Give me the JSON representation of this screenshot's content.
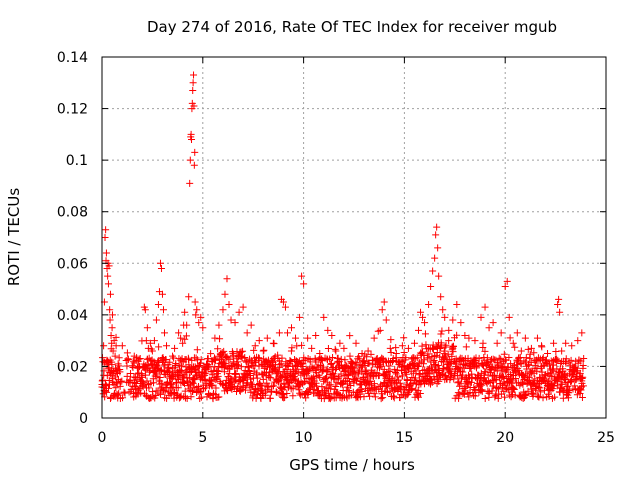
{
  "chart_data": {
    "type": "scatter",
    "title": "Day 274 of 2016, Rate Of TEC Index for receiver mgub",
    "xlabel": "GPS time / hours",
    "ylabel": "ROTI / TECUs",
    "xlim": [
      0,
      25
    ],
    "ylim": [
      0,
      0.14
    ],
    "x_ticks": [
      0,
      5,
      10,
      15,
      20,
      25
    ],
    "x_tick_labels": [
      "0",
      "5",
      "10",
      "15",
      "20",
      "25"
    ],
    "y_ticks": [
      0,
      0.02,
      0.04,
      0.06,
      0.08,
      0.1,
      0.12,
      0.14
    ],
    "y_tick_labels": [
      "0",
      "0.02",
      "0.04",
      "0.06",
      "0.08",
      "0.1",
      "0.12",
      "0.14"
    ],
    "grid": true,
    "marker": "+",
    "series": [
      {
        "name": "ROTI",
        "color": "#ff0000",
        "points": [
          [
            0.0,
            0.012
          ],
          [
            0.08,
            0.028
          ],
          [
            0.12,
            0.045
          ],
          [
            0.15,
            0.07
          ],
          [
            0.18,
            0.073
          ],
          [
            0.2,
            0.061
          ],
          [
            0.22,
            0.064
          ],
          [
            0.25,
            0.058
          ],
          [
            0.28,
            0.055
          ],
          [
            0.3,
            0.06
          ],
          [
            0.32,
            0.052
          ],
          [
            0.35,
            0.059
          ],
          [
            0.38,
            0.042
          ],
          [
            0.4,
            0.038
          ],
          [
            0.42,
            0.048
          ],
          [
            0.45,
            0.032
          ],
          [
            0.48,
            0.029
          ],
          [
            0.5,
            0.035
          ],
          [
            0.52,
            0.04
          ],
          [
            0.55,
            0.026
          ],
          [
            0.6,
            0.03
          ],
          [
            0.65,
            0.024
          ],
          [
            0.7,
            0.028
          ],
          [
            0.8,
            0.021
          ],
          [
            1.6,
            0.024
          ],
          [
            1.8,
            0.022
          ],
          [
            2.1,
            0.043
          ],
          [
            2.15,
            0.042
          ],
          [
            2.2,
            0.03
          ],
          [
            2.25,
            0.035
          ],
          [
            2.3,
            0.027
          ],
          [
            2.4,
            0.029
          ],
          [
            2.5,
            0.026
          ],
          [
            2.6,
            0.03
          ],
          [
            2.7,
            0.038
          ],
          [
            2.8,
            0.044
          ],
          [
            2.85,
            0.049
          ],
          [
            2.9,
            0.06
          ],
          [
            2.95,
            0.058
          ],
          [
            3.0,
            0.048
          ],
          [
            3.05,
            0.042
          ],
          [
            3.1,
            0.033
          ],
          [
            3.2,
            0.028
          ],
          [
            3.5,
            0.024
          ],
          [
            3.6,
            0.027
          ],
          [
            3.8,
            0.033
          ],
          [
            3.9,
            0.031
          ],
          [
            4.0,
            0.029
          ],
          [
            4.05,
            0.036
          ],
          [
            4.1,
            0.041
          ],
          [
            4.2,
            0.036
          ],
          [
            4.3,
            0.047
          ],
          [
            4.35,
            0.091
          ],
          [
            4.38,
            0.1
          ],
          [
            4.4,
            0.109
          ],
          [
            4.42,
            0.11
          ],
          [
            4.44,
            0.108
          ],
          [
            4.46,
            0.12
          ],
          [
            4.48,
            0.122
          ],
          [
            4.5,
            0.127
          ],
          [
            4.52,
            0.13
          ],
          [
            4.54,
            0.133
          ],
          [
            4.56,
            0.121
          ],
          [
            4.58,
            0.098
          ],
          [
            4.6,
            0.103
          ],
          [
            4.62,
            0.045
          ],
          [
            4.65,
            0.04
          ],
          [
            4.7,
            0.042
          ],
          [
            4.8,
            0.037
          ],
          [
            4.9,
            0.039
          ],
          [
            5.0,
            0.035
          ],
          [
            5.6,
            0.031
          ],
          [
            5.8,
            0.036
          ],
          [
            6.0,
            0.042
          ],
          [
            6.1,
            0.048
          ],
          [
            6.2,
            0.054
          ],
          [
            6.3,
            0.044
          ],
          [
            6.4,
            0.038
          ],
          [
            6.6,
            0.037
          ],
          [
            6.8,
            0.041
          ],
          [
            7.0,
            0.043
          ],
          [
            7.2,
            0.033
          ],
          [
            7.4,
            0.036
          ],
          [
            7.6,
            0.028
          ],
          [
            7.8,
            0.03
          ],
          [
            8.0,
            0.026
          ],
          [
            8.2,
            0.031
          ],
          [
            8.5,
            0.029
          ],
          [
            8.8,
            0.033
          ],
          [
            8.9,
            0.046
          ],
          [
            9.0,
            0.045
          ],
          [
            9.1,
            0.043
          ],
          [
            9.2,
            0.033
          ],
          [
            9.4,
            0.035
          ],
          [
            9.6,
            0.031
          ],
          [
            9.8,
            0.039
          ],
          [
            9.9,
            0.055
          ],
          [
            10.0,
            0.052
          ],
          [
            10.2,
            0.031
          ],
          [
            10.4,
            0.027
          ],
          [
            10.6,
            0.032
          ],
          [
            10.8,
            0.025
          ],
          [
            11.0,
            0.039
          ],
          [
            11.2,
            0.034
          ],
          [
            11.4,
            0.032
          ],
          [
            11.6,
            0.026
          ],
          [
            11.8,
            0.029
          ],
          [
            12.0,
            0.027
          ],
          [
            12.3,
            0.024
          ],
          [
            12.6,
            0.029
          ],
          [
            12.9,
            0.025
          ],
          [
            13.2,
            0.026
          ],
          [
            13.5,
            0.031
          ],
          [
            13.8,
            0.034
          ],
          [
            13.9,
            0.042
          ],
          [
            14.0,
            0.045
          ],
          [
            14.1,
            0.038
          ],
          [
            14.3,
            0.027
          ],
          [
            14.6,
            0.025
          ],
          [
            14.9,
            0.028
          ],
          [
            15.2,
            0.027
          ],
          [
            15.5,
            0.029
          ],
          [
            15.7,
            0.034
          ],
          [
            15.8,
            0.041
          ],
          [
            15.9,
            0.039
          ],
          [
            16.0,
            0.037
          ],
          [
            16.2,
            0.044
          ],
          [
            16.3,
            0.051
          ],
          [
            16.4,
            0.057
          ],
          [
            16.5,
            0.062
          ],
          [
            16.55,
            0.071
          ],
          [
            16.6,
            0.074
          ],
          [
            16.65,
            0.066
          ],
          [
            16.7,
            0.055
          ],
          [
            16.8,
            0.047
          ],
          [
            16.9,
            0.042
          ],
          [
            17.0,
            0.039
          ],
          [
            17.2,
            0.034
          ],
          [
            17.4,
            0.038
          ],
          [
            17.6,
            0.044
          ],
          [
            17.8,
            0.037
          ],
          [
            18.0,
            0.032
          ],
          [
            18.2,
            0.031
          ],
          [
            18.5,
            0.03
          ],
          [
            18.8,
            0.039
          ],
          [
            19.0,
            0.043
          ],
          [
            19.2,
            0.035
          ],
          [
            19.4,
            0.037
          ],
          [
            19.6,
            0.029
          ],
          [
            19.8,
            0.033
          ],
          [
            20.0,
            0.051
          ],
          [
            20.1,
            0.053
          ],
          [
            20.2,
            0.039
          ],
          [
            20.4,
            0.029
          ],
          [
            20.6,
            0.033
          ],
          [
            20.8,
            0.026
          ],
          [
            21.0,
            0.031
          ],
          [
            21.3,
            0.027
          ],
          [
            21.6,
            0.031
          ],
          [
            21.8,
            0.028
          ],
          [
            22.1,
            0.025
          ],
          [
            22.4,
            0.029
          ],
          [
            22.6,
            0.044
          ],
          [
            22.65,
            0.046
          ],
          [
            22.7,
            0.041
          ],
          [
            22.8,
            0.026
          ],
          [
            23.0,
            0.029
          ],
          [
            23.3,
            0.028
          ],
          [
            23.6,
            0.03
          ],
          [
            23.8,
            0.033
          ]
        ]
      }
    ]
  }
}
